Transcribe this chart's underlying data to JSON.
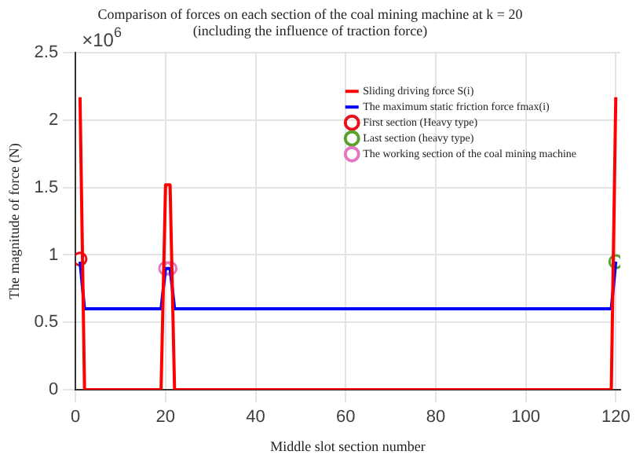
{
  "chart_data": {
    "type": "line",
    "title": "Comparison of forces on each section of the coal mining machine at k = 20",
    "subtitle": "(including the influence of traction force)",
    "xlabel": "Middle slot section number",
    "ylabel": "The magnitude of force (N)",
    "xlim": [
      0,
      121
    ],
    "xticks": [
      0,
      20,
      40,
      60,
      80,
      100,
      120
    ],
    "ylim": [
      0,
      2.5
    ],
    "yticks": [
      0,
      0.5,
      1,
      1.5,
      2,
      2.5
    ],
    "grid": true,
    "legend": "top right",
    "annotations": [
      "×10$^{6}$"
    ],
    "series": [
      {
        "name": "Sliding driving force S(i)",
        "color": "#ff0000",
        "marker": "none",
        "x": [
          1,
          2,
          19,
          20,
          21,
          22,
          119,
          120
        ],
        "values": [
          2.17,
          0,
          0,
          1.52,
          1.52,
          0,
          0,
          2.17
        ]
      },
      {
        "name": "The maximum static friction force fmax(i)",
        "color": "#0000ff",
        "marker": "none",
        "x": [
          1,
          2,
          19,
          20,
          21,
          22,
          119,
          120
        ],
        "values": [
          0.95,
          0.6,
          0.6,
          0.9,
          0.9,
          0.6,
          0.6,
          0.95
        ]
      },
      {
        "name": "First section (Heavy type)",
        "color": "#e8101a",
        "type": "scatter",
        "marker": "circle",
        "x": [
          1
        ],
        "values": [
          0.97
        ]
      },
      {
        "name": "Last section (heavy type)",
        "color": "#5aa02c",
        "type": "scatter",
        "marker": "circle",
        "x": [
          120
        ],
        "values": [
          0.95
        ]
      },
      {
        "name": "The working section of the coal mining machine",
        "color": "#e377c2",
        "type": "scatter",
        "marker": "circle",
        "x": [
          20,
          21
        ],
        "values": [
          0.9,
          0.9
        ]
      }
    ]
  }
}
